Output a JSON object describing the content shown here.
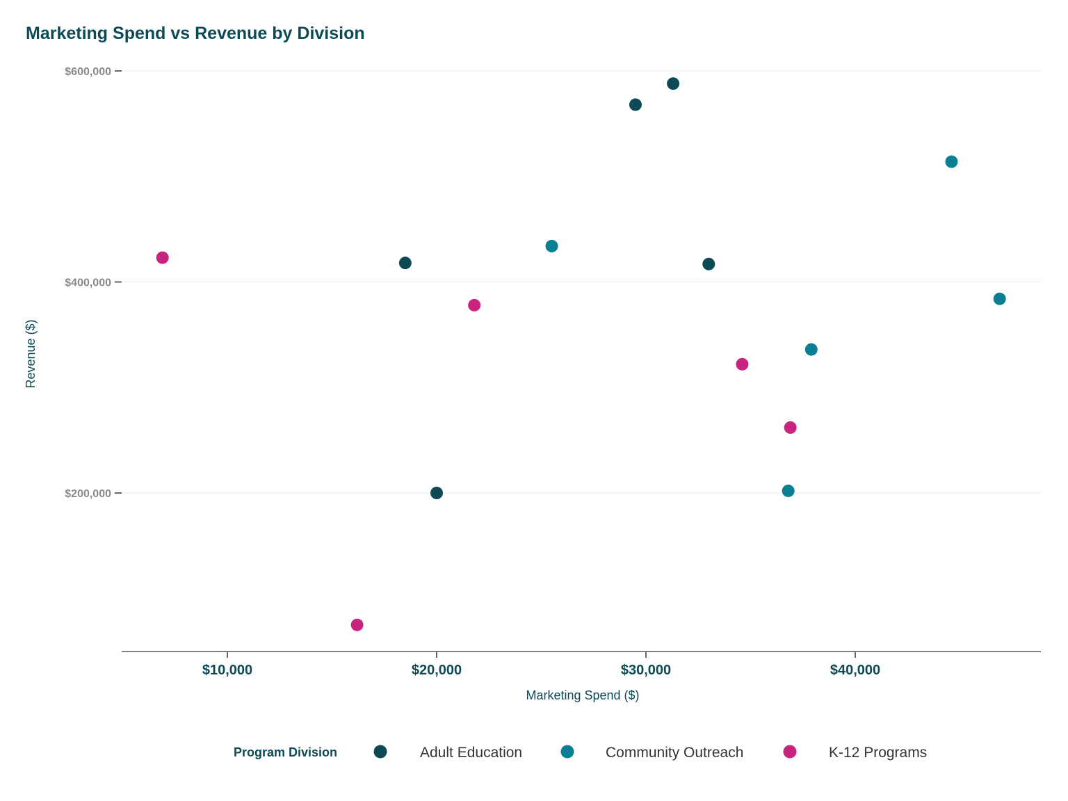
{
  "chart_data": {
    "type": "scatter",
    "title": "Marketing Spend vs Revenue by Division",
    "xlabel": "Marketing Spend ($)",
    "ylabel": "Revenue ($)",
    "xlim": [
      5000,
      48500
    ],
    "ylim": [
      20000,
      610000
    ],
    "x_ticks": [
      10000,
      20000,
      30000,
      40000
    ],
    "x_tick_labels": [
      "$10,000",
      "$20,000",
      "$30,000",
      "$40,000"
    ],
    "y_ticks": [
      200000,
      400000,
      600000
    ],
    "y_tick_labels": [
      "$200,000",
      "$400,000",
      "$600,000"
    ],
    "grid": "horizontal",
    "legend_position": "bottom",
    "legend_title": "Program Division",
    "series": [
      {
        "name": "Adult Education",
        "color": "#0d4a56",
        "points": [
          {
            "x": 18500,
            "y": 418000
          },
          {
            "x": 20000,
            "y": 200000
          },
          {
            "x": 29500,
            "y": 568000
          },
          {
            "x": 31300,
            "y": 588000
          },
          {
            "x": 33000,
            "y": 417000
          }
        ]
      },
      {
        "name": "Community Outreach",
        "color": "#0b8094",
        "points": [
          {
            "x": 25500,
            "y": 434000
          },
          {
            "x": 36800,
            "y": 202000
          },
          {
            "x": 37900,
            "y": 336000
          },
          {
            "x": 44600,
            "y": 514000
          },
          {
            "x": 46900,
            "y": 384000
          }
        ]
      },
      {
        "name": "K-12 Programs",
        "color": "#c8237f",
        "points": [
          {
            "x": 6900,
            "y": 423000
          },
          {
            "x": 16200,
            "y": 75000
          },
          {
            "x": 21800,
            "y": 378000
          },
          {
            "x": 34600,
            "y": 322000
          },
          {
            "x": 36900,
            "y": 262000
          }
        ]
      }
    ]
  }
}
